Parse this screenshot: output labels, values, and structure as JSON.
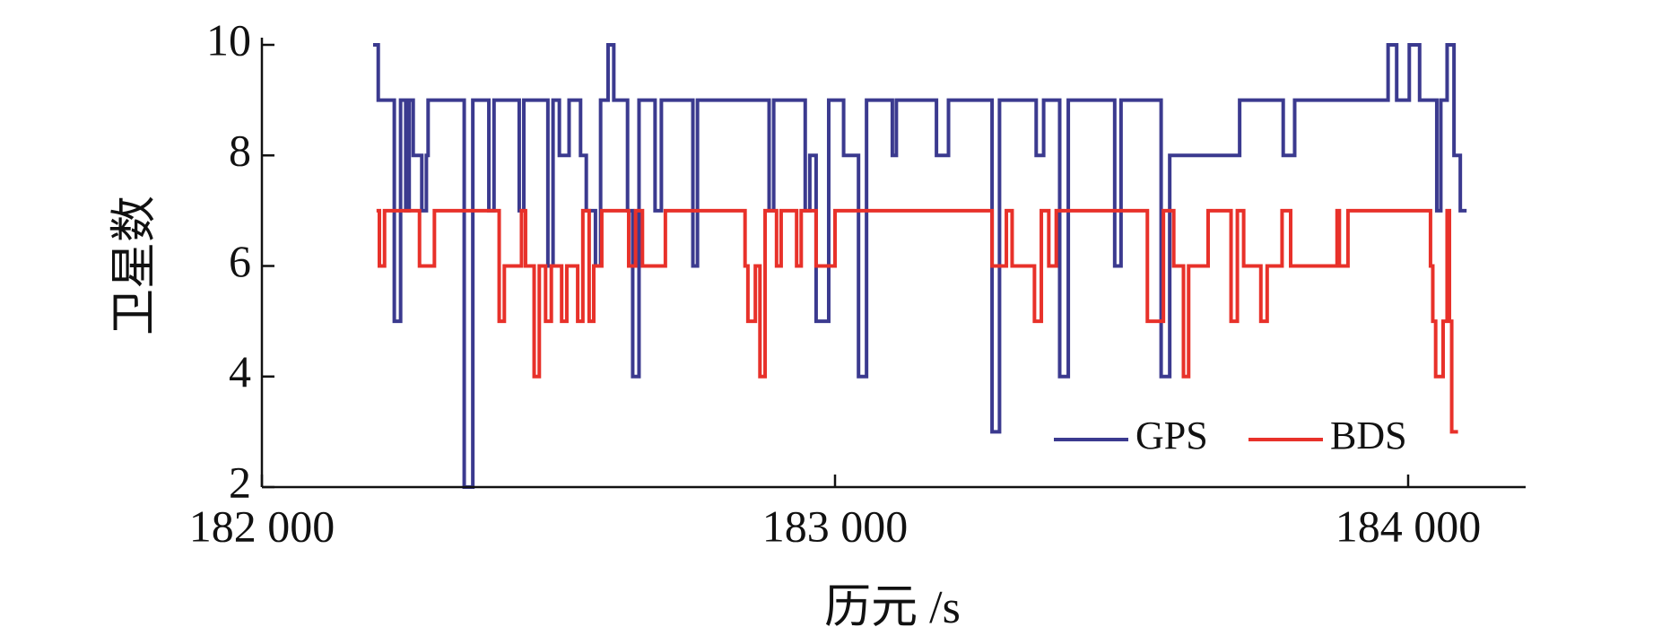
{
  "chart_data": {
    "type": "step",
    "xlabel": "历元 /s",
    "ylabel": "卫星数",
    "xlim": [
      182000,
      184205
    ],
    "ylim": [
      2,
      10
    ],
    "xticks": [
      {
        "value": 182000,
        "label": "182 000"
      },
      {
        "value": 183000,
        "label": "183 000"
      },
      {
        "value": 184000,
        "label": "184 000"
      }
    ],
    "yticks": [
      2,
      4,
      6,
      8,
      10
    ],
    "legend": "lower right",
    "series": [
      {
        "name": "GPS",
        "color": "#3b3a8f",
        "x": [
          182194,
          182203,
          182231,
          182242,
          182251,
          182257,
          182264,
          182279,
          182287,
          182290,
          182353,
          182368,
          182396,
          182405,
          182449,
          182457,
          182499,
          182508,
          182519,
          182536,
          182556,
          182566,
          182582,
          182591,
          182604,
          182614,
          182638,
          182647,
          182658,
          182686,
          182697,
          182752,
          182760,
          182885,
          182893,
          182948,
          182956,
          182967,
          182989,
          183015,
          183041,
          183055,
          183100,
          183107,
          183177,
          183198,
          183274,
          183287,
          183351,
          183364,
          183392,
          183407,
          183488,
          183499,
          183569,
          183584,
          183706,
          183782,
          183802,
          183965,
          183980,
          184002,
          184020,
          184050,
          184057,
          184068,
          184080,
          184091,
          184102
        ],
        "values": [
          10,
          9,
          5,
          9,
          7,
          9,
          8,
          7,
          8,
          9,
          2,
          9,
          7,
          9,
          7,
          9,
          6,
          9,
          8,
          9,
          8,
          7,
          6,
          9,
          10,
          9,
          7,
          4,
          9,
          7,
          9,
          6,
          9,
          7,
          9,
          7,
          8,
          5,
          9,
          8,
          4,
          9,
          8,
          9,
          8,
          9,
          3,
          9,
          8,
          9,
          4,
          9,
          6,
          9,
          4,
          8,
          9,
          8,
          9,
          10,
          9,
          10,
          9,
          7,
          9,
          10,
          8,
          7,
          7
        ]
      },
      {
        "name": "BDS",
        "color": "#e8312a",
        "x": [
          182200,
          182205,
          182214,
          182275,
          182301,
          182414,
          182423,
          182453,
          182460,
          182475,
          182484,
          182495,
          182505,
          182523,
          182532,
          182551,
          182560,
          182571,
          182579,
          182593,
          182640,
          182652,
          182664,
          182704,
          182843,
          182848,
          182861,
          182869,
          182878,
          182898,
          182906,
          182933,
          182941,
          182967,
          183000,
          183274,
          183299,
          183309,
          183348,
          183360,
          183373,
          183386,
          183545,
          183573,
          183591,
          183608,
          183617,
          183651,
          183691,
          183702,
          183713,
          183743,
          183754,
          183780,
          183795,
          183876,
          183880,
          183895,
          184039,
          184043,
          184048,
          184061,
          184068,
          184072,
          184076,
          184087
        ],
        "values": [
          7,
          6,
          7,
          6,
          7,
          5,
          6,
          7,
          6,
          4,
          6,
          5,
          6,
          5,
          6,
          5,
          7,
          5,
          6,
          7,
          6,
          7,
          6,
          7,
          6,
          5,
          6,
          4,
          7,
          6,
          7,
          6,
          7,
          6,
          7,
          6,
          7,
          6,
          5,
          7,
          6,
          7,
          5,
          7,
          6,
          4,
          6,
          7,
          5,
          7,
          6,
          5,
          6,
          7,
          6,
          7,
          6,
          7,
          6,
          5,
          4,
          5,
          7,
          5,
          3,
          3
        ]
      }
    ]
  }
}
